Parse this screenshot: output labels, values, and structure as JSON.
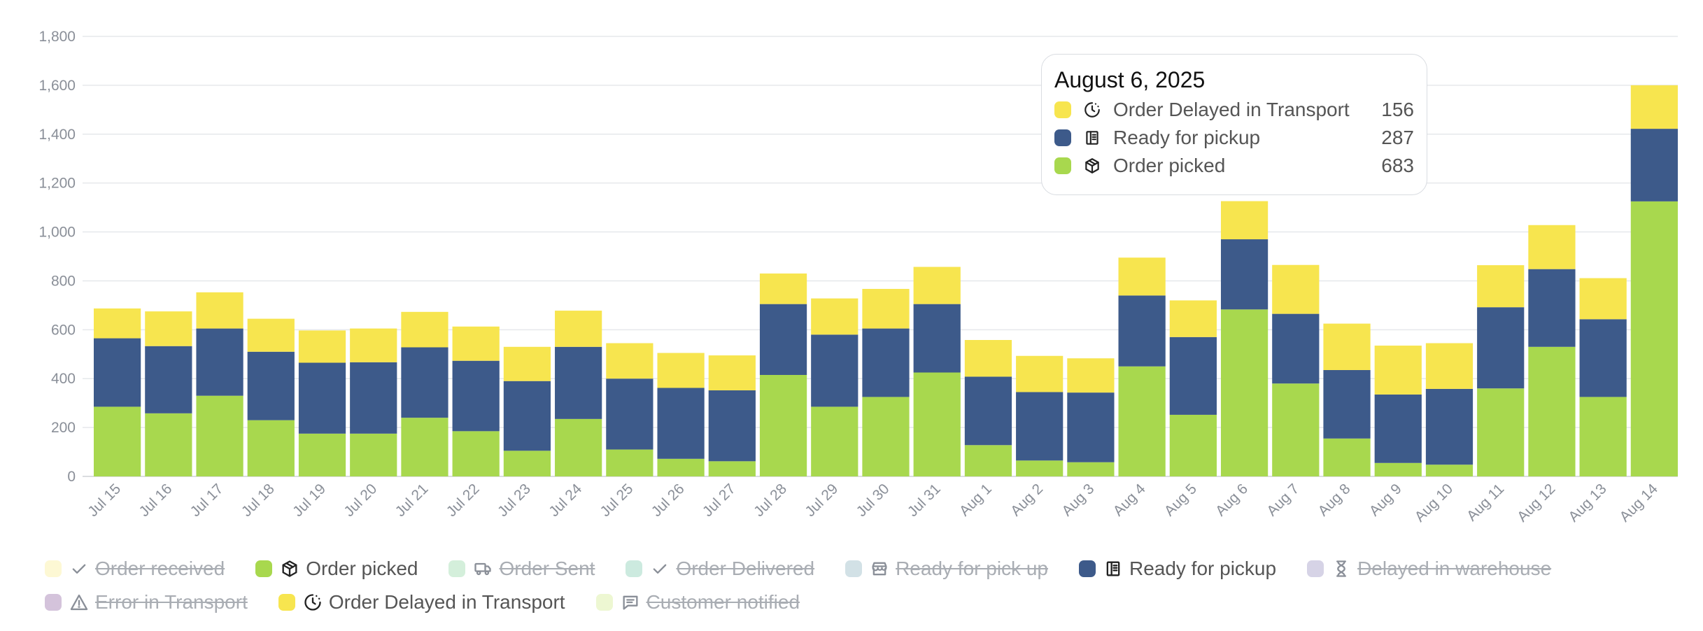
{
  "chart_data": {
    "type": "stacked-bar",
    "title": "",
    "xlabel": "",
    "ylabel": "",
    "ylim": [
      0,
      1800
    ],
    "yticks": [
      0,
      200,
      400,
      600,
      800,
      1000,
      1200,
      1400,
      1600,
      1800
    ],
    "ytick_labels": [
      "0",
      "200",
      "400",
      "600",
      "800",
      "1,000",
      "1,200",
      "1,400",
      "1,600",
      "1,800"
    ],
    "grid": true,
    "categories": [
      "Jul 15",
      "Jul 16",
      "Jul 17",
      "Jul 18",
      "Jul 19",
      "Jul 20",
      "Jul 21",
      "Jul 22",
      "Jul 23",
      "Jul 24",
      "Jul 25",
      "Jul 26",
      "Jul 27",
      "Jul 28",
      "Jul 29",
      "Jul 30",
      "Jul 31",
      "Aug 1",
      "Aug 2",
      "Aug 3",
      "Aug 4",
      "Aug 5",
      "Aug 6",
      "Aug 7",
      "Aug 8",
      "Aug 9",
      "Aug 10",
      "Aug 11",
      "Aug 12",
      "Aug 13",
      "Aug 14"
    ],
    "series": [
      {
        "name": "Order picked",
        "color": "#a8d84e",
        "values": [
          285,
          258,
          330,
          230,
          175,
          175,
          240,
          185,
          105,
          235,
          110,
          72,
          62,
          415,
          285,
          325,
          425,
          128,
          65,
          58,
          450,
          252,
          683,
          380,
          155,
          55,
          48,
          360,
          530,
          325,
          1125
        ]
      },
      {
        "name": "Ready for pickup",
        "color": "#3d5a8a",
        "values": [
          280,
          275,
          275,
          280,
          290,
          292,
          288,
          288,
          285,
          295,
          290,
          290,
          290,
          290,
          295,
          280,
          280,
          280,
          280,
          285,
          290,
          318,
          287,
          285,
          280,
          280,
          310,
          332,
          318,
          318,
          297
        ]
      },
      {
        "name": "Order Delayed in Transport",
        "color": "#f7e54f",
        "values": [
          122,
          142,
          148,
          135,
          132,
          138,
          145,
          140,
          140,
          148,
          145,
          143,
          143,
          125,
          148,
          162,
          152,
          150,
          148,
          140,
          155,
          150,
          156,
          200,
          190,
          200,
          187,
          172,
          180,
          168,
          178
        ]
      }
    ],
    "legend_position": "bottom",
    "legend": [
      {
        "label": "Order received",
        "color": "#faf0a0",
        "icon": "check-icon",
        "hidden": true
      },
      {
        "label": "Order picked",
        "color": "#a8d84e",
        "icon": "package-icon",
        "hidden": false
      },
      {
        "label": "Order Sent",
        "color": "#9fdcb0",
        "icon": "truck-icon",
        "hidden": true
      },
      {
        "label": "Order Delivered",
        "color": "#8ed0b8",
        "icon": "check-icon",
        "hidden": true
      },
      {
        "label": "Ready for pick up",
        "color": "#9bbcc8",
        "icon": "store-icon",
        "hidden": true
      },
      {
        "label": "Ready for pickup",
        "color": "#3d5a8a",
        "icon": "book-icon",
        "hidden": false
      },
      {
        "label": "Delayed in warehouse",
        "color": "#a39ec8",
        "icon": "hourglass-icon",
        "hidden": true
      },
      {
        "label": "Error in Transport",
        "color": "#a07ab0",
        "icon": "warning-icon",
        "hidden": true
      },
      {
        "label": "Order Delayed in Transport",
        "color": "#f7e54f",
        "icon": "clock-icon",
        "hidden": false
      },
      {
        "label": "Customer notified",
        "color": "#d8ee9c",
        "icon": "message-icon",
        "hidden": true
      }
    ],
    "tooltip": {
      "title": "August 6, 2025",
      "rows": [
        {
          "label": "Order Delayed in Transport",
          "value": "156",
          "color": "#f7e54f",
          "icon": "clock-icon"
        },
        {
          "label": "Ready for pickup",
          "value": "287",
          "color": "#3d5a8a",
          "icon": "book-icon"
        },
        {
          "label": "Order picked",
          "value": "683",
          "color": "#a8d84e",
          "icon": "package-icon"
        }
      ]
    }
  }
}
